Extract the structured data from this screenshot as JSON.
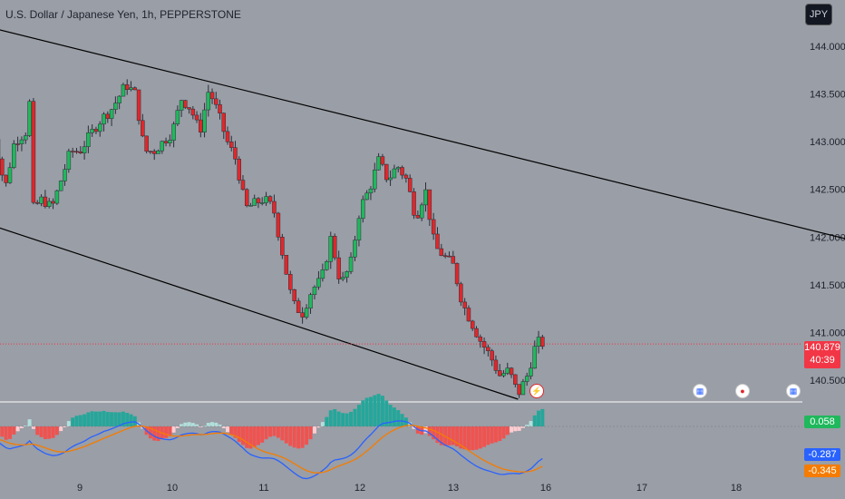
{
  "header": {
    "title": "U.S. Dollar / Japanese Yen, 1h, PEPPERSTONE"
  },
  "toolbar": {
    "currency_label": "JPY"
  },
  "colors": {
    "up": "#1fb85c",
    "down": "#e0272b",
    "line": "#000000",
    "blue": "#2962ff",
    "orange": "#f57c00",
    "last_price": "#f23645"
  },
  "price_tag": {
    "price": "140.879",
    "countdown": "40:39"
  },
  "macd_tags": {
    "histogram": "0.058",
    "macd": "-0.287",
    "signal": "-0.345"
  },
  "events": [
    {
      "icon": "lightning-icon"
    },
    {
      "icon": "us-flag-icon"
    },
    {
      "icon": "target-icon"
    },
    {
      "icon": "us-flag-icon"
    }
  ],
  "chart_data": {
    "type": "candlestick",
    "title": "U.S. Dollar / Japanese Yen, 1h, PEPPERSTONE",
    "y_ticks": [
      "144.000",
      "143.500",
      "143.000",
      "142.500",
      "142.000",
      "141.500",
      "141.000",
      "140.500"
    ],
    "x_ticks": [
      "9",
      "10",
      "11",
      "12",
      "13",
      "16",
      "17",
      "18"
    ],
    "ylim": [
      140.3,
      144.2
    ],
    "last_price": 140.879,
    "close_path": [
      [
        8.0,
        143.35
      ],
      [
        8.1,
        143.0
      ],
      [
        8.2,
        142.5
      ],
      [
        8.3,
        143.0
      ],
      [
        8.42,
        143.1
      ],
      [
        8.45,
        143.75
      ],
      [
        8.5,
        142.3
      ],
      [
        8.6,
        142.4
      ],
      [
        8.7,
        142.3
      ],
      [
        8.8,
        142.6
      ],
      [
        8.9,
        142.9
      ],
      [
        9.0,
        142.9
      ],
      [
        9.2,
        143.2
      ],
      [
        9.35,
        143.35
      ],
      [
        9.5,
        143.6
      ],
      [
        9.6,
        143.5
      ],
      [
        9.7,
        142.9
      ],
      [
        9.8,
        142.9
      ],
      [
        9.9,
        143.0
      ],
      [
        10.0,
        143.1
      ],
      [
        10.1,
        143.45
      ],
      [
        10.2,
        143.35
      ],
      [
        10.3,
        143.1
      ],
      [
        10.4,
        143.55
      ],
      [
        10.5,
        143.3
      ],
      [
        10.6,
        143.0
      ],
      [
        10.7,
        142.8
      ],
      [
        10.8,
        142.3
      ],
      [
        10.9,
        142.35
      ],
      [
        11.0,
        142.4
      ],
      [
        11.1,
        142.3
      ],
      [
        11.2,
        141.8
      ],
      [
        11.3,
        141.3
      ],
      [
        11.4,
        141.2
      ],
      [
        11.5,
        141.45
      ],
      [
        11.6,
        141.55
      ],
      [
        11.7,
        142.0
      ],
      [
        11.8,
        141.5
      ],
      [
        11.9,
        141.7
      ],
      [
        12.0,
        142.3
      ],
      [
        12.1,
        142.5
      ],
      [
        12.2,
        142.8
      ],
      [
        12.3,
        142.6
      ],
      [
        12.4,
        142.75
      ],
      [
        12.5,
        142.6
      ],
      [
        12.6,
        142.2
      ],
      [
        12.7,
        142.5
      ],
      [
        12.8,
        141.9
      ],
      [
        12.9,
        141.8
      ],
      [
        13.0,
        141.7
      ],
      [
        13.1,
        141.3
      ],
      [
        13.2,
        141.1
      ],
      [
        13.3,
        140.9
      ],
      [
        13.4,
        140.75
      ],
      [
        13.5,
        140.55
      ],
      [
        13.6,
        140.6
      ],
      [
        13.7,
        140.35
      ],
      [
        13.8,
        140.55
      ],
      [
        13.9,
        140.9
      ],
      [
        14.0,
        140.879
      ]
    ],
    "trend_lines": [
      {
        "from": [
          7.2,
          144.4
        ],
        "to": [
          18.7,
          141.6
        ]
      },
      {
        "from": [
          7.2,
          142.4
        ],
        "to": [
          13.7,
          140.3
        ]
      }
    ],
    "macd": {
      "histogram_range": [
        -0.2,
        0.2
      ],
      "line_range": [
        -0.5,
        0.4
      ]
    }
  }
}
